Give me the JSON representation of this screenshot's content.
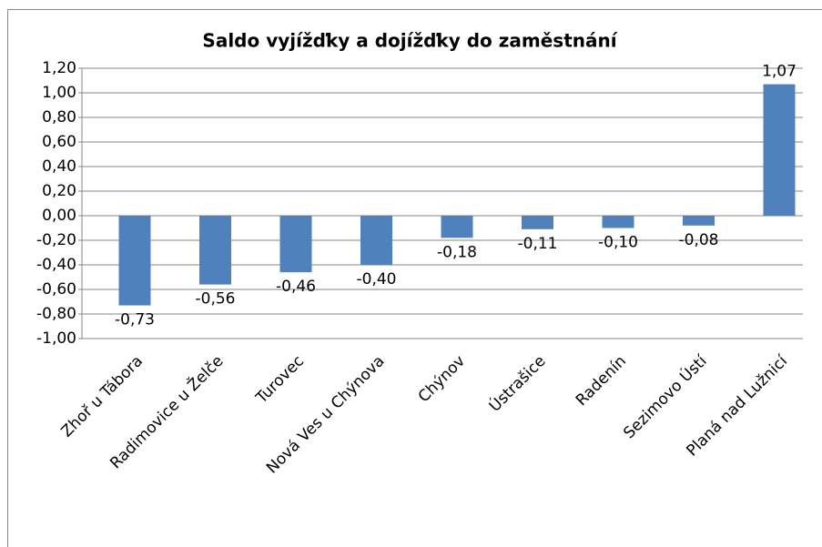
{
  "chart_data": {
    "type": "bar",
    "title": "Saldo vyjížďky a dojížďky do zaměstnání",
    "categories": [
      "Zhoř u Tábora",
      "Radimovice u Želče",
      "Turovec",
      "Nová Ves u Chýnova",
      "Chýnov",
      "Ústrašice",
      "Radenín",
      "Sezimovo Ústí",
      "Planá nad Lužnicí"
    ],
    "values": [
      -0.73,
      -0.56,
      -0.46,
      -0.4,
      -0.18,
      -0.11,
      -0.1,
      -0.08,
      1.07
    ],
    "value_labels": [
      "-0,73",
      "-0,56",
      "-0,46",
      "-0,40",
      "-0,18",
      "-0,11",
      "-0,10",
      "-0,08",
      "1,07"
    ],
    "color": "#4f81bd",
    "ylim": [
      -1.0,
      1.2
    ],
    "yticks": [
      {
        "value": -1.0,
        "label": "-1,00"
      },
      {
        "value": -0.8,
        "label": "-0,80"
      },
      {
        "value": -0.6,
        "label": "-0,60"
      },
      {
        "value": -0.4,
        "label": "-0,40"
      },
      {
        "value": -0.2,
        "label": "-0,20"
      },
      {
        "value": 0,
        "label": "0,00"
      },
      {
        "value": 0.2,
        "label": "0,20"
      },
      {
        "value": 0.4,
        "label": "0,40"
      },
      {
        "value": 0.6,
        "label": "0,60"
      },
      {
        "value": 0.8,
        "label": "0,80"
      },
      {
        "value": 1.0,
        "label": "1,00"
      },
      {
        "value": 1.2,
        "label": "1,20"
      }
    ],
    "grid": true
  }
}
